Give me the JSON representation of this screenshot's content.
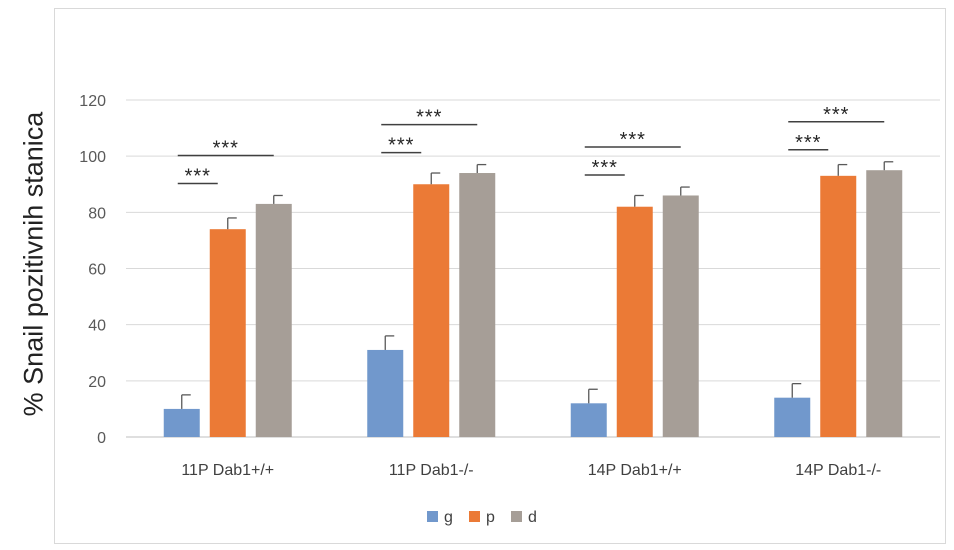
{
  "chart_data": {
    "type": "bar",
    "title": "",
    "xlabel": "",
    "ylabel": "% Snail pozitivnih stanica",
    "ylim": [
      0,
      120
    ],
    "yticks": [
      0,
      20,
      40,
      60,
      80,
      100,
      120
    ],
    "grid": true,
    "legend_position": "bottom",
    "categories": [
      "11P Dab1+/+",
      "11P Dab1-/-",
      "14P Dab1+/+",
      "14P Dab1-/-"
    ],
    "series": [
      {
        "name": "g",
        "color": "#7198CC",
        "values": [
          10,
          31,
          12,
          14
        ],
        "errors": [
          5,
          5,
          5,
          5
        ]
      },
      {
        "name": "p",
        "color": "#EB7A36",
        "values": [
          74,
          90,
          82,
          93
        ],
        "errors": [
          4,
          4,
          4,
          4
        ]
      },
      {
        "name": "d",
        "color": "#A69E97",
        "values": [
          83,
          94,
          86,
          95
        ],
        "errors": [
          3,
          3,
          3,
          3
        ]
      }
    ],
    "significance": [
      {
        "category": 0,
        "label": "***",
        "from_series": 0,
        "to_series": 1
      },
      {
        "category": 0,
        "label": "***",
        "from_series": 0,
        "to_series": 2
      },
      {
        "category": 1,
        "label": "***",
        "from_series": 0,
        "to_series": 1
      },
      {
        "category": 1,
        "label": "***",
        "from_series": 0,
        "to_series": 2
      },
      {
        "category": 2,
        "label": "***",
        "from_series": 0,
        "to_series": 1
      },
      {
        "category": 2,
        "label": "***",
        "from_series": 0,
        "to_series": 2
      },
      {
        "category": 3,
        "label": "***",
        "from_series": 0,
        "to_series": 1
      },
      {
        "category": 3,
        "label": "***",
        "from_series": 0,
        "to_series": 2
      }
    ]
  }
}
